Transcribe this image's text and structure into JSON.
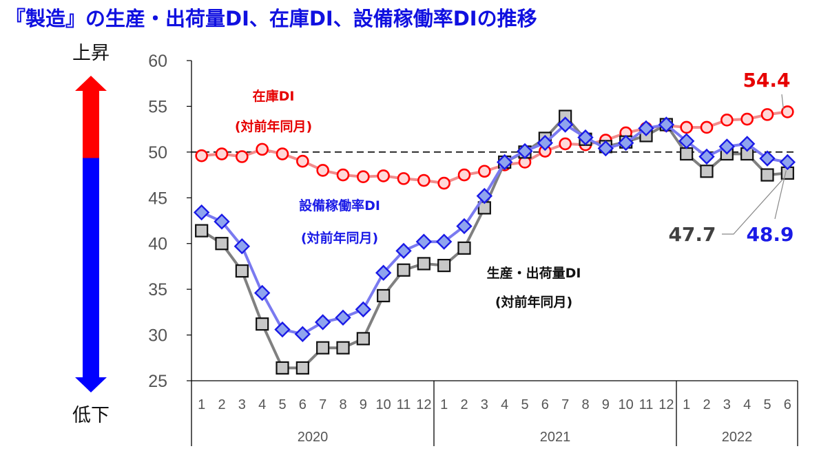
{
  "title": "『製造』の生産・出荷量DI、在庫DI、設備稼働率DIの推移",
  "chart_data": {
    "type": "line",
    "title": "『製造』の生産・出荷量DI、在庫DI、設備稼働率DIの推移",
    "ylim": [
      25,
      60
    ],
    "yticks": [
      25,
      30,
      35,
      40,
      45,
      50,
      55,
      60
    ],
    "x": [
      "1",
      "2",
      "3",
      "4",
      "5",
      "6",
      "7",
      "8",
      "9",
      "10",
      "11",
      "12",
      "1",
      "2",
      "3",
      "4",
      "5",
      "6",
      "7",
      "8",
      "9",
      "10",
      "11",
      "12",
      "1",
      "2",
      "3",
      "4",
      "5",
      "6"
    ],
    "years": [
      {
        "label": "2020",
        "count": 12
      },
      {
        "label": "2021",
        "count": 12
      },
      {
        "label": "2022",
        "count": 6
      }
    ],
    "reference_line": 50,
    "series": [
      {
        "name": "在庫DI",
        "name_line2": "(対前年同月)",
        "color": "#ff0000",
        "marker": "circle",
        "values": [
          49.6,
          49.8,
          49.5,
          50.3,
          49.8,
          49.0,
          48.0,
          47.5,
          47.3,
          47.4,
          47.1,
          46.9,
          46.6,
          47.5,
          47.9,
          48.6,
          48.9,
          50.1,
          50.9,
          50.8,
          51.3,
          52.1,
          52.6,
          52.9,
          52.7,
          52.7,
          53.5,
          53.6,
          54.1,
          54.4
        ],
        "end_label": "54.4"
      },
      {
        "name": "設備稼働率DI",
        "name_line2": "(対前年同月)",
        "color": "#1a1ae6",
        "marker": "diamond",
        "values": [
          43.4,
          42.4,
          39.7,
          34.6,
          30.6,
          30.1,
          31.4,
          31.9,
          32.8,
          36.8,
          39.2,
          40.2,
          40.2,
          41.9,
          45.2,
          48.9,
          50.1,
          51.0,
          53.0,
          51.6,
          50.4,
          51.0,
          52.6,
          53.0,
          51.2,
          49.5,
          50.6,
          50.9,
          49.3,
          48.9
        ],
        "end_label": "48.9"
      },
      {
        "name": "生産・出荷量DI",
        "name_line2": "(対前年同月)",
        "color": "#404040",
        "marker": "square",
        "values": [
          41.4,
          40.0,
          37.0,
          31.2,
          26.4,
          26.4,
          28.6,
          28.6,
          29.6,
          34.3,
          37.1,
          37.8,
          37.6,
          39.5,
          43.9,
          48.9,
          50.0,
          51.5,
          53.9,
          51.4,
          50.6,
          51.1,
          51.8,
          53.0,
          49.8,
          47.9,
          49.8,
          49.8,
          47.5,
          47.7
        ],
        "end_label": "47.7"
      }
    ],
    "arrow": {
      "top_label": "上昇",
      "bottom_label": "低下"
    }
  }
}
